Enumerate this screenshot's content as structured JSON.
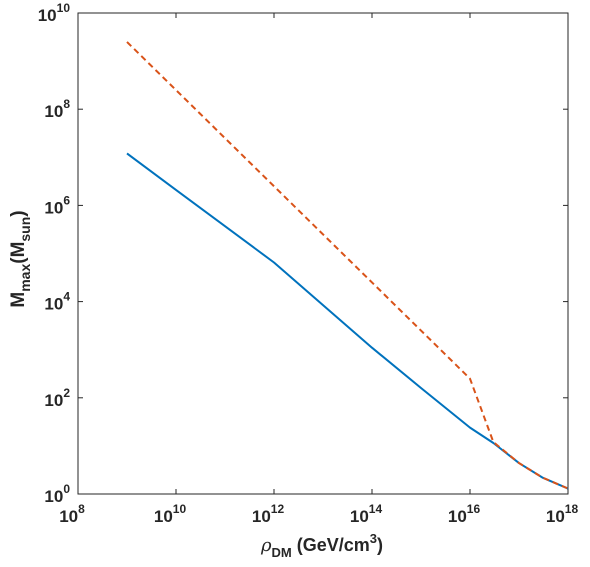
{
  "chart_data": {
    "type": "line",
    "x_scale": "log",
    "y_scale": "log",
    "xlim": [
      100000000.0,
      1e+18
    ],
    "ylim": [
      1,
      10000000000.0
    ],
    "x_ticks": [
      {
        "base": "10",
        "exp": "8",
        "value": 100000000.0
      },
      {
        "base": "10",
        "exp": "10",
        "value": 10000000000.0
      },
      {
        "base": "10",
        "exp": "12",
        "value": 1000000000000.0
      },
      {
        "base": "10",
        "exp": "14",
        "value": 100000000000000.0
      },
      {
        "base": "10",
        "exp": "16",
        "value": 1e+16
      },
      {
        "base": "10",
        "exp": "18",
        "value": 1e+18
      }
    ],
    "y_ticks": [
      {
        "base": "10",
        "exp": "0",
        "value": 1
      },
      {
        "base": "10",
        "exp": "2",
        "value": 100
      },
      {
        "base": "10",
        "exp": "4",
        "value": 10000
      },
      {
        "base": "10",
        "exp": "6",
        "value": 1000000
      },
      {
        "base": "10",
        "exp": "8",
        "value": 100000000
      },
      {
        "base": "10",
        "exp": "10",
        "value": 10000000000
      }
    ],
    "xlabel": {
      "symbol": "ρ",
      "sub": "DM",
      "unit_pre": " (GeV/cm",
      "unit_sup": "3",
      "unit_post": ")"
    },
    "ylabel": {
      "main": "M",
      "sub": "max",
      "open": "(M",
      "sub2": "sun",
      "close": ")"
    },
    "grid": false,
    "series": [
      {
        "style": "solid",
        "color": "#0072BD",
        "points": [
          [
            1000000000.0,
            12000000.0
          ],
          [
            10000000000.0,
            2100000.0
          ],
          [
            1000000000000.0,
            65000.0
          ],
          [
            100000000000000.0,
            1100.0
          ],
          [
            1000000000000000.0,
            160.0
          ],
          [
            1e+16,
            24.0
          ],
          [
            3e+16,
            11.5
          ],
          [
            1e+17,
            4.4
          ],
          [
            3e+17,
            2.2
          ],
          [
            1e+18,
            1.3
          ]
        ]
      },
      {
        "style": "dashed",
        "color": "#D95319",
        "points": [
          [
            1000000000.0,
            2500000000.0
          ],
          [
            10000000000.0,
            250000000.0
          ],
          [
            1000000000000.0,
            2500000.0
          ],
          [
            100000000000000.0,
            25000.0
          ],
          [
            1000000000000000.0,
            2500.0
          ],
          [
            1e+16,
            250.0
          ],
          [
            3e+16,
            12.0
          ],
          [
            1e+17,
            4.4
          ],
          [
            3e+17,
            2.2
          ],
          [
            1e+18,
            1.3
          ]
        ]
      }
    ]
  }
}
